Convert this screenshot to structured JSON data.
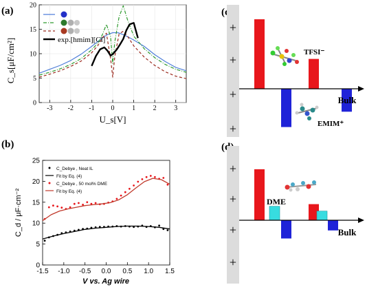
{
  "panels": {
    "a": "(a)",
    "b": "(b)",
    "c": "(c)",
    "d": "(d)"
  },
  "colors": {
    "blue": "#4f7fd9",
    "green": "#2e9a2e",
    "dark_red": "#9b2a1e",
    "black": "#000000",
    "bar_red": "#e8171c",
    "bar_blue": "#1f23d8",
    "bar_cyan": "#37dce0",
    "sidebar": "#dcdcdc"
  },
  "chart_data": [
    {
      "id": "a",
      "type": "line",
      "ylabel": "C_s[μF/cm²]",
      "xlabel": "U_s[V]",
      "xlim": [
        -3.5,
        3.5
      ],
      "ylim": [
        0,
        20
      ],
      "xticks": [
        "-3",
        "-2",
        "-1",
        "0",
        "1",
        "2",
        "3"
      ],
      "yticks": [
        "0",
        "5",
        "10",
        "15",
        "20"
      ],
      "legend_location": "top-left",
      "legend": [
        {
          "style": "solid",
          "color": "blue",
          "marker": "ball-blue"
        },
        {
          "style": "dashdot",
          "color": "green",
          "marker": "balls-green-gray"
        },
        {
          "style": "dashed",
          "color": "dark_red",
          "marker": "balls-red-gray"
        },
        {
          "style": "solid-thick",
          "color": "black",
          "label": "exp.[hmim][Cl]"
        }
      ],
      "series": [
        {
          "style": "solid",
          "color": "blue",
          "x": [
            -3.5,
            -3,
            -2.5,
            -2,
            -1.5,
            -1,
            -0.5,
            -0.25,
            0,
            0.25,
            0.5,
            0.75,
            1,
            1.5,
            2,
            2.5,
            3,
            3.5
          ],
          "y": [
            6.0,
            6.8,
            7.6,
            8.6,
            9.9,
            11.5,
            13.2,
            13.9,
            14.3,
            14.3,
            13.9,
            13.4,
            12.8,
            11.5,
            9.8,
            8.4,
            7.2,
            6.5
          ]
        },
        {
          "style": "dashdot",
          "color": "green",
          "x": [
            -3.5,
            -3,
            -2.5,
            -2,
            -1.5,
            -1,
            -0.7,
            -0.5,
            -0.3,
            -0.1,
            0,
            0.1,
            0.3,
            0.5,
            0.7,
            1,
            1.5,
            2,
            2.5,
            3,
            3.5
          ],
          "y": [
            5.6,
            6.2,
            6.9,
            7.8,
            9.0,
            10.8,
            12.2,
            13.8,
            16.0,
            13.5,
            8.0,
            12.5,
            17.5,
            19.8,
            17.0,
            13.6,
            11.0,
            9.2,
            7.8,
            6.8,
            6.2
          ]
        },
        {
          "style": "dashed",
          "color": "dark_red",
          "x": [
            -3.5,
            -3,
            -2.5,
            -2,
            -1.5,
            -1,
            -0.7,
            -0.5,
            -0.3,
            -0.1,
            0,
            0.1,
            0.3,
            0.5,
            0.7,
            1,
            1.5,
            2,
            2.5,
            3,
            3.5
          ],
          "y": [
            5.2,
            5.8,
            6.5,
            7.4,
            8.5,
            10.2,
            11.7,
            13.2,
            14.2,
            9.0,
            5.2,
            9.5,
            14.0,
            14.6,
            13.6,
            11.6,
            9.3,
            7.6,
            6.3,
            5.4,
            4.9
          ]
        },
        {
          "style": "solid-thick",
          "color": "black",
          "label": "exp.[hmim][Cl]",
          "x": [
            -1.0,
            -0.8,
            -0.6,
            -0.4,
            -0.25,
            -0.1,
            0,
            0.1,
            0.2,
            0.35,
            0.5,
            0.65,
            0.8,
            1.0,
            1.2
          ],
          "y": [
            7.5,
            9.5,
            10.9,
            11.3,
            10.6,
            9.6,
            9.9,
            10.4,
            10.9,
            11.9,
            13.0,
            14.8,
            16.0,
            16.3,
            13.2
          ]
        }
      ]
    },
    {
      "id": "b",
      "type": "scatter",
      "ylabel": "C_d / μF·cm⁻²",
      "xlabel": "V vs. Ag wire",
      "xlim": [
        -1.5,
        1.5
      ],
      "ylim": [
        0,
        25
      ],
      "xticks": [
        "-1.5",
        "-1.0",
        "-0.5",
        "0.0",
        "0.5",
        "1.0",
        "1.5"
      ],
      "yticks": [
        "0",
        "5",
        "10",
        "15",
        "20",
        "25"
      ],
      "legend_location": "top-left",
      "legend": [
        {
          "kind": "dot",
          "color": "black",
          "label": "C_Debye , Neat IL"
        },
        {
          "kind": "line",
          "color": "black",
          "label": "Fit by Eq. (4)"
        },
        {
          "kind": "dot",
          "color": "bar_red",
          "label": "C_Debye , 50 mol% DME"
        },
        {
          "kind": "line",
          "color": "bar_red",
          "label": "Fit by Eq. (4)"
        }
      ],
      "series": [
        {
          "kind": "dot",
          "color": "black",
          "label": "C_Debye , Neat IL",
          "x": [
            -1.45,
            -1.35,
            -1.25,
            -1.15,
            -1.05,
            -0.95,
            -0.85,
            -0.75,
            -0.65,
            -0.55,
            -0.45,
            -0.35,
            -0.25,
            -0.15,
            -0.05,
            0.05,
            0.15,
            0.25,
            0.35,
            0.45,
            0.55,
            0.65,
            0.75,
            0.85,
            0.95,
            1.05,
            1.15,
            1.25,
            1.35,
            1.45
          ],
          "y": [
            5.8,
            6.6,
            6.9,
            7.2,
            7.6,
            7.8,
            8.0,
            8.2,
            8.4,
            8.6,
            8.7,
            8.9,
            9.0,
            9.1,
            9.1,
            9.2,
            9.2,
            9.3,
            9.2,
            9.3,
            9.2,
            9.1,
            9.2,
            9.4,
            9.1,
            9.3,
            9.0,
            9.4,
            8.6,
            8.3
          ]
        },
        {
          "kind": "line",
          "color": "black",
          "label": "Fit by Eq. (4)",
          "x": [
            -1.5,
            -1.25,
            -1.0,
            -0.75,
            -0.5,
            -0.25,
            0,
            0.25,
            0.5,
            0.75,
            1.0,
            1.25,
            1.5
          ],
          "y": [
            6.2,
            6.9,
            7.5,
            8.0,
            8.5,
            8.8,
            9.0,
            9.2,
            9.3,
            9.3,
            9.2,
            9.0,
            8.6
          ]
        },
        {
          "kind": "dot",
          "color": "bar_red",
          "label": "C_Debye , 50 mol% DME",
          "x": [
            -1.45,
            -1.35,
            -1.25,
            -1.15,
            -1.05,
            -0.95,
            -0.85,
            -0.75,
            -0.65,
            -0.55,
            -0.45,
            -0.35,
            -0.25,
            -0.15,
            -0.05,
            0.05,
            0.15,
            0.25,
            0.35,
            0.45,
            0.55,
            0.65,
            0.75,
            0.85,
            0.95,
            1.05,
            1.15,
            1.25,
            1.35,
            1.45
          ],
          "y": [
            11.0,
            13.8,
            14.2,
            14.0,
            13.7,
            13.4,
            13.8,
            14.6,
            14.8,
            14.4,
            15.0,
            14.6,
            14.8,
            14.5,
            14.6,
            14.9,
            15.2,
            15.8,
            16.6,
            17.4,
            18.2,
            19.0,
            19.9,
            20.5,
            21.0,
            21.3,
            21.0,
            20.6,
            20.8,
            19.2
          ]
        },
        {
          "kind": "line",
          "color": "bar_red",
          "label": "Fit by Eq. (4)",
          "x": [
            -1.5,
            -1.3,
            -1.1,
            -0.9,
            -0.7,
            -0.5,
            -0.3,
            -0.1,
            0.1,
            0.3,
            0.5,
            0.7,
            0.9,
            1.1,
            1.3,
            1.5
          ],
          "y": [
            10.6,
            12.0,
            12.9,
            13.4,
            13.8,
            14.2,
            14.4,
            14.6,
            14.9,
            15.6,
            16.8,
            18.4,
            19.9,
            20.7,
            20.4,
            19.3
          ]
        }
      ]
    },
    {
      "id": "c",
      "type": "bar",
      "x_axis_label": "Bulk",
      "plus_signs": [
        "+",
        "+",
        "+",
        "+"
      ],
      "annotations": [
        "TFSI⁻",
        "EMIM⁺"
      ],
      "bars": [
        {
          "color": "bar_red",
          "value": 1.0
        },
        {
          "color": "bar_blue",
          "value": -0.55
        },
        {
          "color": "bar_red",
          "value": 0.43
        },
        {
          "color": "bar_blue",
          "value": -0.33
        }
      ]
    },
    {
      "id": "d",
      "type": "bar",
      "x_axis_label": "Bulk",
      "plus_signs": [
        "+",
        "+",
        "+",
        "+"
      ],
      "annotations": [
        "DME"
      ],
      "bars": [
        {
          "color": "bar_red",
          "value": 0.95
        },
        {
          "color": "bar_cyan",
          "value": 0.26
        },
        {
          "color": "bar_blue",
          "value": -0.34
        },
        {
          "color": "bar_red",
          "value": 0.3
        },
        {
          "color": "bar_cyan",
          "value": 0.17
        },
        {
          "color": "bar_blue",
          "value": -0.19
        }
      ]
    }
  ]
}
